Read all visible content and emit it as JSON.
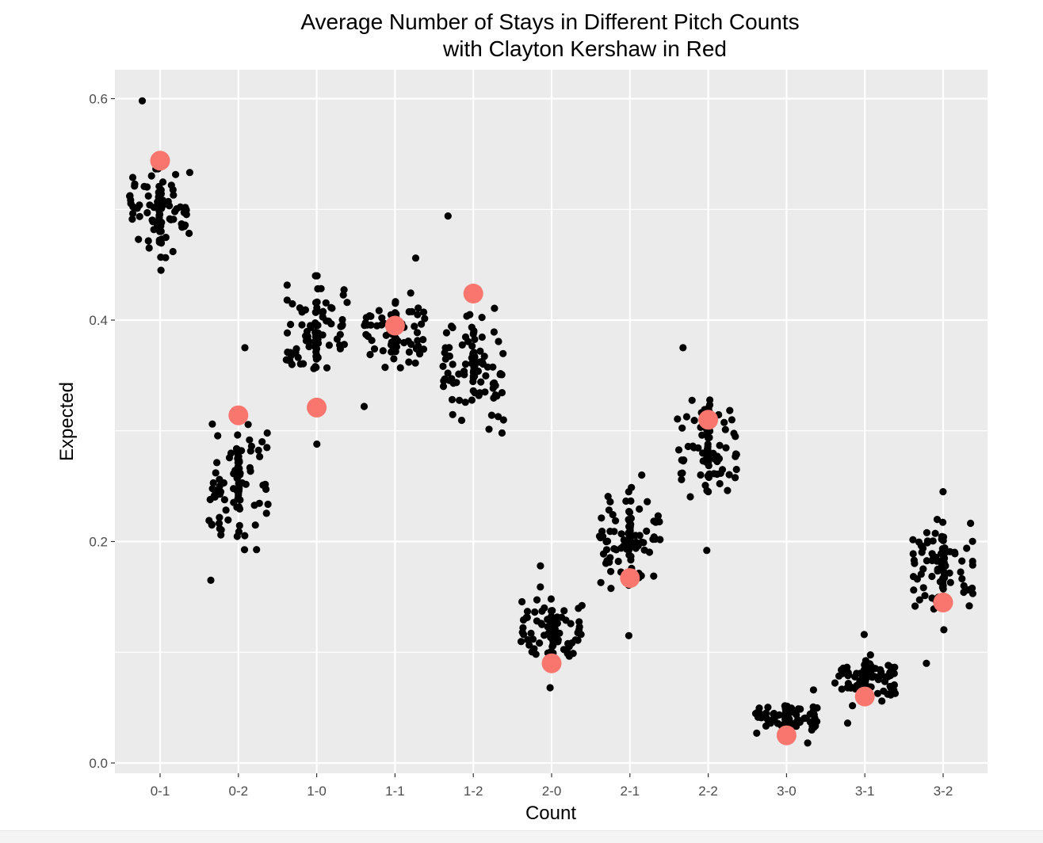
{
  "chart_data": {
    "type": "scatter",
    "title": "Average Number of Stays in Different Pitch Counts",
    "subtitle": "with Clayton Kershaw in Red",
    "xlabel": "Count",
    "ylabel": "Expected",
    "categories": [
      "0-1",
      "0-2",
      "1-0",
      "1-1",
      "1-2",
      "2-0",
      "2-1",
      "2-2",
      "3-0",
      "3-1",
      "3-2"
    ],
    "ylim": [
      -0.01,
      0.6
    ],
    "yticks": [
      0.0,
      0.2,
      0.4,
      0.6
    ],
    "ytick_labels": [
      "0.0",
      "0.2",
      "0.4",
      "0.6"
    ],
    "grid": true,
    "colors": {
      "panel": "#ebebeb",
      "grid": "#ffffff",
      "points": "#000000",
      "highlight": "#f8766d"
    },
    "series": [
      {
        "summary": [
          {
            "category": "0-1",
            "min": 0.445,
            "max": 0.598,
            "center": 0.5
          },
          {
            "category": "0-2",
            "min": 0.165,
            "max": 0.375,
            "center": 0.25
          },
          {
            "category": "1-0",
            "min": 0.288,
            "max": 0.44,
            "center": 0.39
          },
          {
            "category": "1-1",
            "min": 0.322,
            "max": 0.456,
            "center": 0.39
          },
          {
            "category": "1-2",
            "min": 0.298,
            "max": 0.494,
            "center": 0.36
          },
          {
            "category": "2-0",
            "min": 0.068,
            "max": 0.178,
            "center": 0.12
          },
          {
            "category": "2-1",
            "min": 0.115,
            "max": 0.26,
            "center": 0.2
          },
          {
            "category": "2-2",
            "min": 0.192,
            "max": 0.375,
            "center": 0.29
          },
          {
            "category": "3-0",
            "min": 0.018,
            "max": 0.066,
            "center": 0.04
          },
          {
            "category": "3-1",
            "min": 0.036,
            "max": 0.116,
            "center": 0.075
          },
          {
            "category": "3-2",
            "min": 0.09,
            "max": 0.245,
            "center": 0.18
          }
        ]
      },
      {
        "name": "Clayton Kershaw",
        "points": [
          {
            "category": "0-1",
            "value": 0.544
          },
          {
            "category": "0-2",
            "value": 0.314
          },
          {
            "category": "1-0",
            "value": 0.321
          },
          {
            "category": "1-1",
            "value": 0.395
          },
          {
            "category": "1-2",
            "value": 0.424
          },
          {
            "category": "2-0",
            "value": 0.09
          },
          {
            "category": "2-1",
            "value": 0.167
          },
          {
            "category": "2-2",
            "value": 0.31
          },
          {
            "category": "3-0",
            "value": 0.025
          },
          {
            "category": "3-1",
            "value": 0.06
          },
          {
            "category": "3-2",
            "value": 0.145
          }
        ]
      }
    ]
  }
}
